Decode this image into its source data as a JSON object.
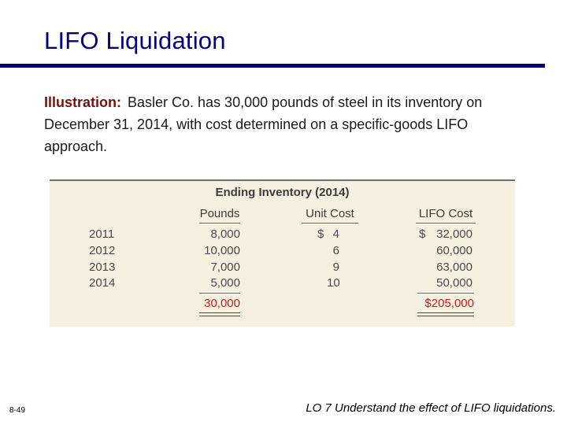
{
  "slide": {
    "title": "LIFO Liquidation",
    "intro_lead": "Illustration:",
    "intro_text": "Basler Co. has 30,000 pounds of steel in its inventory on December 31, 2014, with cost determined on a specific-goods LIFO approach.",
    "page_number": "8-49",
    "footer": "LO 7  Understand the effect of LIFO liquidations."
  },
  "table": {
    "title": "Ending Inventory (2014)",
    "headers": {
      "pounds": "Pounds",
      "unit_cost": "Unit Cost",
      "lifo_cost": "LIFO Cost"
    },
    "rows": [
      {
        "year": "2011",
        "pounds": "8,000",
        "dollar": "$",
        "unit_cost": "4",
        "lifo_dollar": "$",
        "lifo_cost": "32,000"
      },
      {
        "year": "2012",
        "pounds": "10,000",
        "dollar": "",
        "unit_cost": "6",
        "lifo_dollar": "",
        "lifo_cost": "60,000"
      },
      {
        "year": "2013",
        "pounds": "7,000",
        "dollar": "",
        "unit_cost": "9",
        "lifo_dollar": "",
        "lifo_cost": "63,000"
      },
      {
        "year": "2014",
        "pounds": "5,000",
        "dollar": "",
        "unit_cost": "10",
        "lifo_dollar": "",
        "lifo_cost": "50,000"
      }
    ],
    "totals": {
      "pounds": "30,000",
      "lifo_cost": "$205,000"
    }
  },
  "colors": {
    "title": "#00007f",
    "lead": "#7a0f0f",
    "total": "#c4201a",
    "table_bg": "#f6f0e1"
  }
}
